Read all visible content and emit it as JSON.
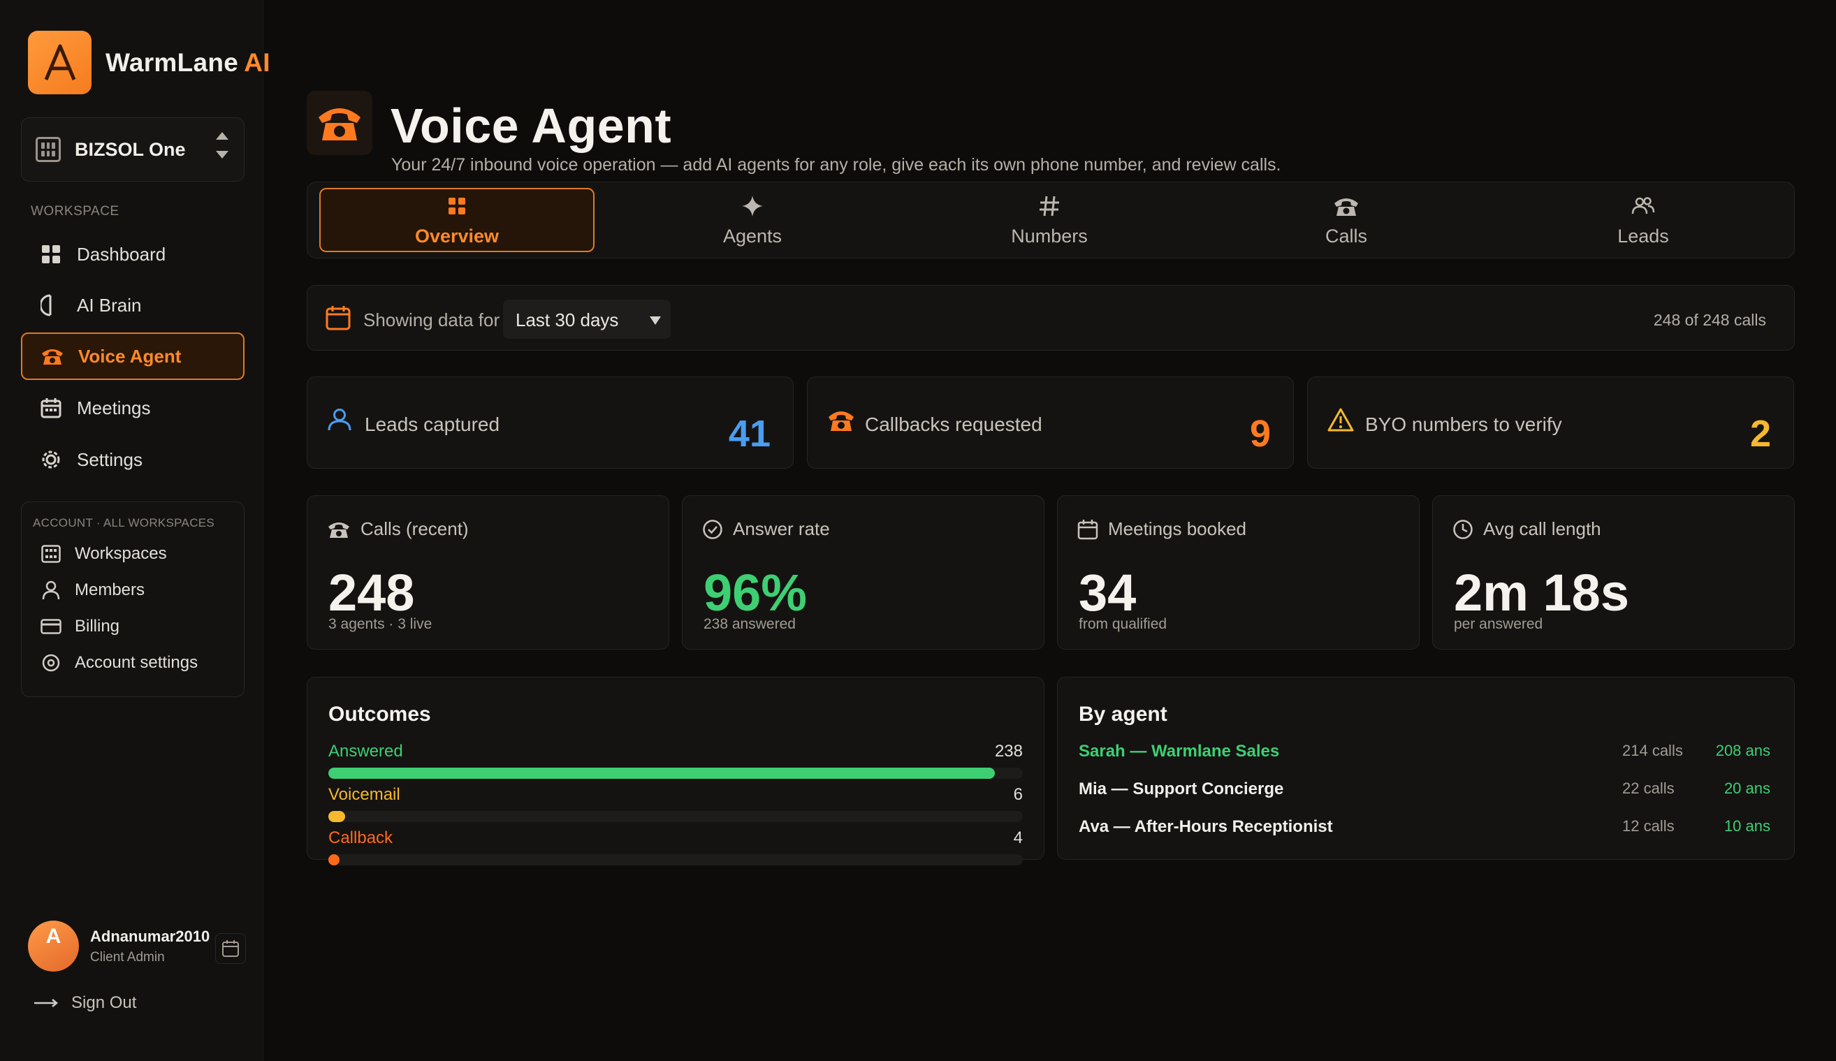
{
  "brand": {
    "name": "WarmLane",
    "suffix": "AI"
  },
  "workspace": {
    "name": "BIZSOL One"
  },
  "sidebar": {
    "section_label": "WORKSPACE",
    "items": [
      {
        "label": "Dashboard",
        "icon": "grid-icon"
      },
      {
        "label": "AI Brain",
        "icon": "brain-icon"
      },
      {
        "label": "Voice Agent",
        "icon": "phone-icon",
        "active": true
      },
      {
        "label": "Meetings",
        "icon": "calendar-icon"
      },
      {
        "label": "Settings",
        "icon": "gear-icon"
      }
    ],
    "account_label": "ACCOUNT · ALL WORKSPACES",
    "account_items": [
      {
        "label": "Workspaces",
        "icon": "grid-icon"
      },
      {
        "label": "Members",
        "icon": "user-icon"
      },
      {
        "label": "Billing",
        "icon": "card-icon"
      },
      {
        "label": "Account settings",
        "icon": "settings-circle-icon"
      }
    ]
  },
  "user": {
    "initial": "A",
    "name": "Adnanumar2010",
    "role": "Client Admin"
  },
  "signout_label": "Sign Out",
  "page": {
    "title": "Voice Agent",
    "subtitle": "Your 24/7 inbound voice operation — add AI agents for any role, give each its own phone number, and review calls."
  },
  "tabs": [
    {
      "label": "Overview",
      "icon": "grid-icon",
      "active": true
    },
    {
      "label": "Agents",
      "icon": "sparkle-icon"
    },
    {
      "label": "Numbers",
      "icon": "hash-icon"
    },
    {
      "label": "Calls",
      "icon": "phone-icon"
    },
    {
      "label": "Leads",
      "icon": "users-icon"
    }
  ],
  "filter": {
    "label": "Showing data for",
    "selected": "Last 30 days",
    "count_text": "248 of 248 calls"
  },
  "kpis": [
    {
      "label": "Leads captured",
      "value": "41",
      "color": "#4a9df0",
      "icon": "user-icon"
    },
    {
      "label": "Callbacks requested",
      "value": "9",
      "color": "#ff7a1f",
      "icon": "phone-icon"
    },
    {
      "label": "BYO numbers to verify",
      "value": "2",
      "color": "#f5b82e",
      "icon": "warning-icon"
    }
  ],
  "stats": [
    {
      "label": "Calls (recent)",
      "value": "248",
      "note": "3 agents · 3 live",
      "icon": "phone-icon",
      "color": "#f5f2ee"
    },
    {
      "label": "Answer rate",
      "value": "96%",
      "note": "238 answered",
      "icon": "check-circle-icon",
      "color": "#3ecf73"
    },
    {
      "label": "Meetings booked",
      "value": "34",
      "note": "from qualified",
      "icon": "calendar-icon",
      "color": "#f5f2ee"
    },
    {
      "label": "Avg call length",
      "value": "2m 18s",
      "note": "per answered",
      "icon": "clock-icon",
      "color": "#f5f2ee"
    }
  ],
  "outcomes": {
    "title": "Outcomes",
    "rows": [
      {
        "label": "Answered",
        "value": "238",
        "fraction": 0.96,
        "color": "#3ecf73"
      },
      {
        "label": "Voicemail",
        "value": "6",
        "fraction": 0.024,
        "color": "#f5b82e"
      },
      {
        "label": "Callback",
        "value": "4",
        "fraction": 0.016,
        "color": "#ff6a1a"
      }
    ]
  },
  "by_agent": {
    "title": "By agent",
    "rows": [
      {
        "name": "Sarah — Warmlane Sales",
        "calls": "214 calls",
        "answered": "208 ans",
        "highlight": true
      },
      {
        "name": "Mia — Support Concierge",
        "calls": "22 calls",
        "answered": "20 ans",
        "highlight": false
      },
      {
        "name": "Ava — After-Hours Receptionist",
        "calls": "12 calls",
        "answered": "10 ans",
        "highlight": false
      }
    ]
  },
  "colors": {
    "accent": "#ff7a1f",
    "green": "#3ecf73",
    "blue": "#4a9df0",
    "yellow": "#f5b82e"
  }
}
